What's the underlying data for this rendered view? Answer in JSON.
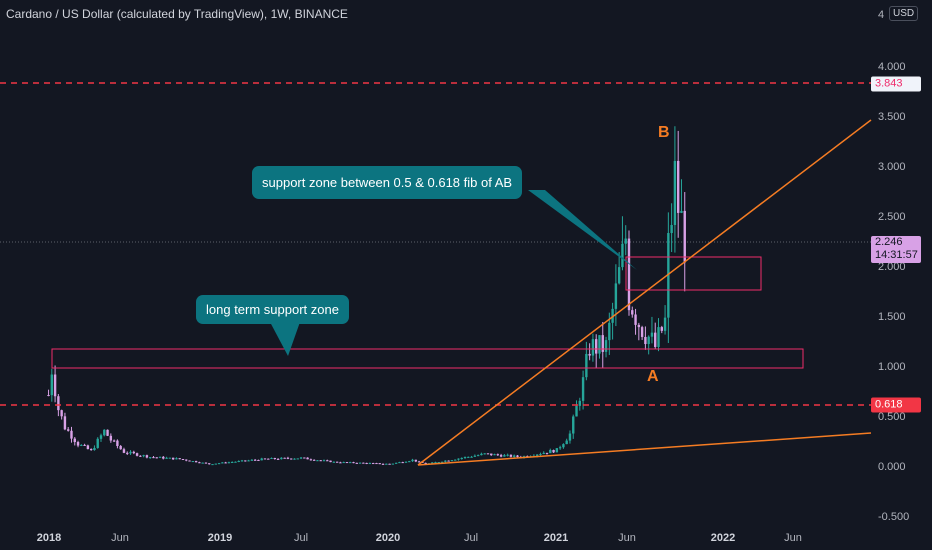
{
  "header": {
    "title": "Cardano / US Dollar (calculated by TradingView), 1W, BINANCE",
    "currency": "USD",
    "top_partial_label": "4"
  },
  "price_tags": {
    "upper_level": "3.843",
    "lower_level": "0.618",
    "current_price": "2.246",
    "countdown": "14:31:57"
  },
  "annotations": {
    "callout_long": "long term support zone",
    "callout_fib": "support zone between 0.5 & 0.618 fib of AB",
    "label_a": "A",
    "label_b": "B"
  },
  "colors": {
    "background": "#131722",
    "up_candle": "#26a69a",
    "down_candle": "#d8a1e6",
    "level_line": "#f23645",
    "zone_border": "#ef2c6b",
    "trendline": "#f57c23",
    "callout_bg": "#0c7480"
  },
  "chart_data": {
    "type": "candlestick",
    "symbol": "Cardano / US Dollar",
    "timeframe": "1W",
    "exchange": "BINANCE",
    "y_ticks": [
      "4.000",
      "3.500",
      "3.000",
      "2.500",
      "2.000",
      "1.500",
      "1.000",
      "0.500",
      "0.000",
      "-0.500"
    ],
    "x_ticks": [
      {
        "label": "2018",
        "bold": true
      },
      {
        "label": "Jun",
        "bold": false
      },
      {
        "label": "2019",
        "bold": true
      },
      {
        "label": "Jul",
        "bold": false
      },
      {
        "label": "2020",
        "bold": true
      },
      {
        "label": "Jul",
        "bold": false
      },
      {
        "label": "2021",
        "bold": true
      },
      {
        "label": "Jun",
        "bold": false
      },
      {
        "label": "2022",
        "bold": true
      },
      {
        "label": "Jun",
        "bold": false
      }
    ],
    "ylim": [
      -0.5,
      4.5
    ],
    "horizontal_levels": [
      3.843,
      0.618
    ],
    "current_price": 2.246,
    "zones": [
      {
        "x0": "2018-01-15",
        "x1": "2021-12-15",
        "y0": 0.99,
        "y1": 1.18
      },
      {
        "x0": "2021-05-01",
        "x1": "2021-12-01",
        "y0": 1.77,
        "y1": 2.1
      }
    ],
    "trendlines": [
      {
        "from": [
          "2020-03-15",
          0.02
        ],
        "to": [
          "2022-10-01",
          3.5
        ]
      },
      {
        "from": [
          "2020-03-15",
          0.02
        ],
        "to": [
          "2022-10-01",
          0.33
        ]
      }
    ],
    "series_close": [
      {
        "x": "2017-12-31",
        "close": 0.72
      },
      {
        "x": "2018-01-07",
        "close": 0.98
      },
      {
        "x": "2018-01-21",
        "close": 0.58
      },
      {
        "x": "2018-02-04",
        "close": 0.4
      },
      {
        "x": "2018-03-04",
        "close": 0.23
      },
      {
        "x": "2018-04-01",
        "close": 0.16
      },
      {
        "x": "2018-04-29",
        "close": 0.36
      },
      {
        "x": "2018-05-13",
        "close": 0.27
      },
      {
        "x": "2018-06-10",
        "close": 0.15
      },
      {
        "x": "2018-08-05",
        "close": 0.1
      },
      {
        "x": "2018-10-07",
        "close": 0.08
      },
      {
        "x": "2018-12-09",
        "close": 0.03
      },
      {
        "x": "2019-04-07",
        "close": 0.08
      },
      {
        "x": "2019-06-23",
        "close": 0.09
      },
      {
        "x": "2019-09-01",
        "close": 0.05
      },
      {
        "x": "2019-12-29",
        "close": 0.03
      },
      {
        "x": "2020-02-16",
        "close": 0.07
      },
      {
        "x": "2020-03-15",
        "close": 0.03
      },
      {
        "x": "2020-07-19",
        "close": 0.13
      },
      {
        "x": "2020-10-04",
        "close": 0.1
      },
      {
        "x": "2020-12-20",
        "close": 0.17
      },
      {
        "x": "2021-01-17",
        "close": 0.33
      },
      {
        "x": "2021-02-14",
        "close": 0.85
      },
      {
        "x": "2021-02-28",
        "close": 1.2
      },
      {
        "x": "2021-04-04",
        "close": 1.2
      },
      {
        "x": "2021-05-09",
        "close": 2.1
      },
      {
        "x": "2021-05-16",
        "close": 2.3
      },
      {
        "x": "2021-05-23",
        "close": 1.7
      },
      {
        "x": "2021-06-13",
        "close": 1.45
      },
      {
        "x": "2021-07-18",
        "close": 1.2
      },
      {
        "x": "2021-08-08",
        "close": 1.45
      },
      {
        "x": "2021-08-15",
        "close": 2.2
      },
      {
        "x": "2021-08-22",
        "close": 2.5
      },
      {
        "x": "2021-08-29",
        "close": 2.9
      },
      {
        "x": "2021-09-05",
        "close": 2.6
      },
      {
        "x": "2021-09-12",
        "close": 2.45
      },
      {
        "x": "2021-09-19",
        "close": 2.246
      }
    ]
  }
}
